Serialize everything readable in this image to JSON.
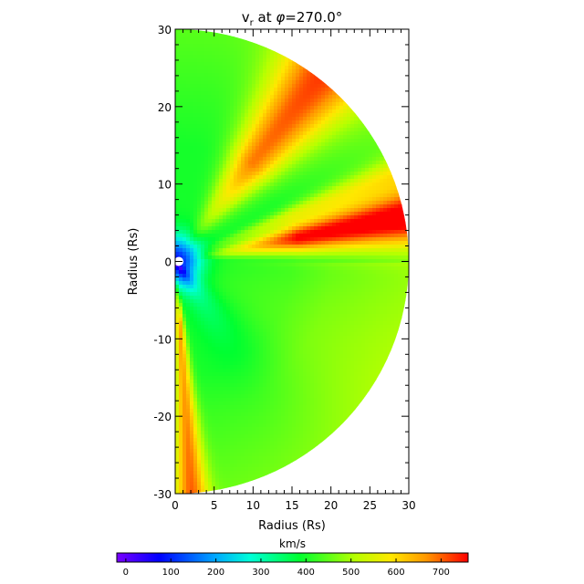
{
  "chart_data": {
    "type": "heatmap",
    "title": {
      "prefix": "v",
      "subscript": "r",
      "middle": " at ",
      "symbol": "φ",
      "suffix": "=270.0°"
    },
    "xlabel": "Radius (Rs)",
    "ylabel": "Radius (Rs)",
    "xlim": [
      0,
      30
    ],
    "ylim": [
      -30,
      30
    ],
    "x_ticks": [
      "0",
      "5",
      "10",
      "15",
      "20",
      "25",
      "30"
    ],
    "y_ticks": [
      "-30",
      "-20",
      "-10",
      "0",
      "10",
      "20",
      "30"
    ],
    "colorbar": {
      "label": "km/s",
      "range": [
        -20,
        760
      ],
      "ticks": [
        "0",
        "100",
        "200",
        "300",
        "400",
        "500",
        "600",
        "700"
      ],
      "colormap": "rainbow (purple → blue → cyan → green → yellow → orange → red)"
    },
    "field": {
      "description_units": "km/s",
      "domain": "semicircle, r ≤ 30 Rs, x ≥ 0",
      "inner_boundary_radius": 0.6,
      "background_value": 400,
      "features": [
        {
          "name": "fast stream (upper)",
          "peak_value": 680,
          "angle_deg": 52
        },
        {
          "name": "fast stream (equatorial)",
          "peak_value": 760,
          "angle_deg": 11
        },
        {
          "name": "fast stream (southern pole)",
          "peak_value": 650,
          "angle_deg": -86
        },
        {
          "name": "slow region near sun",
          "min_value": 80
        }
      ]
    }
  }
}
